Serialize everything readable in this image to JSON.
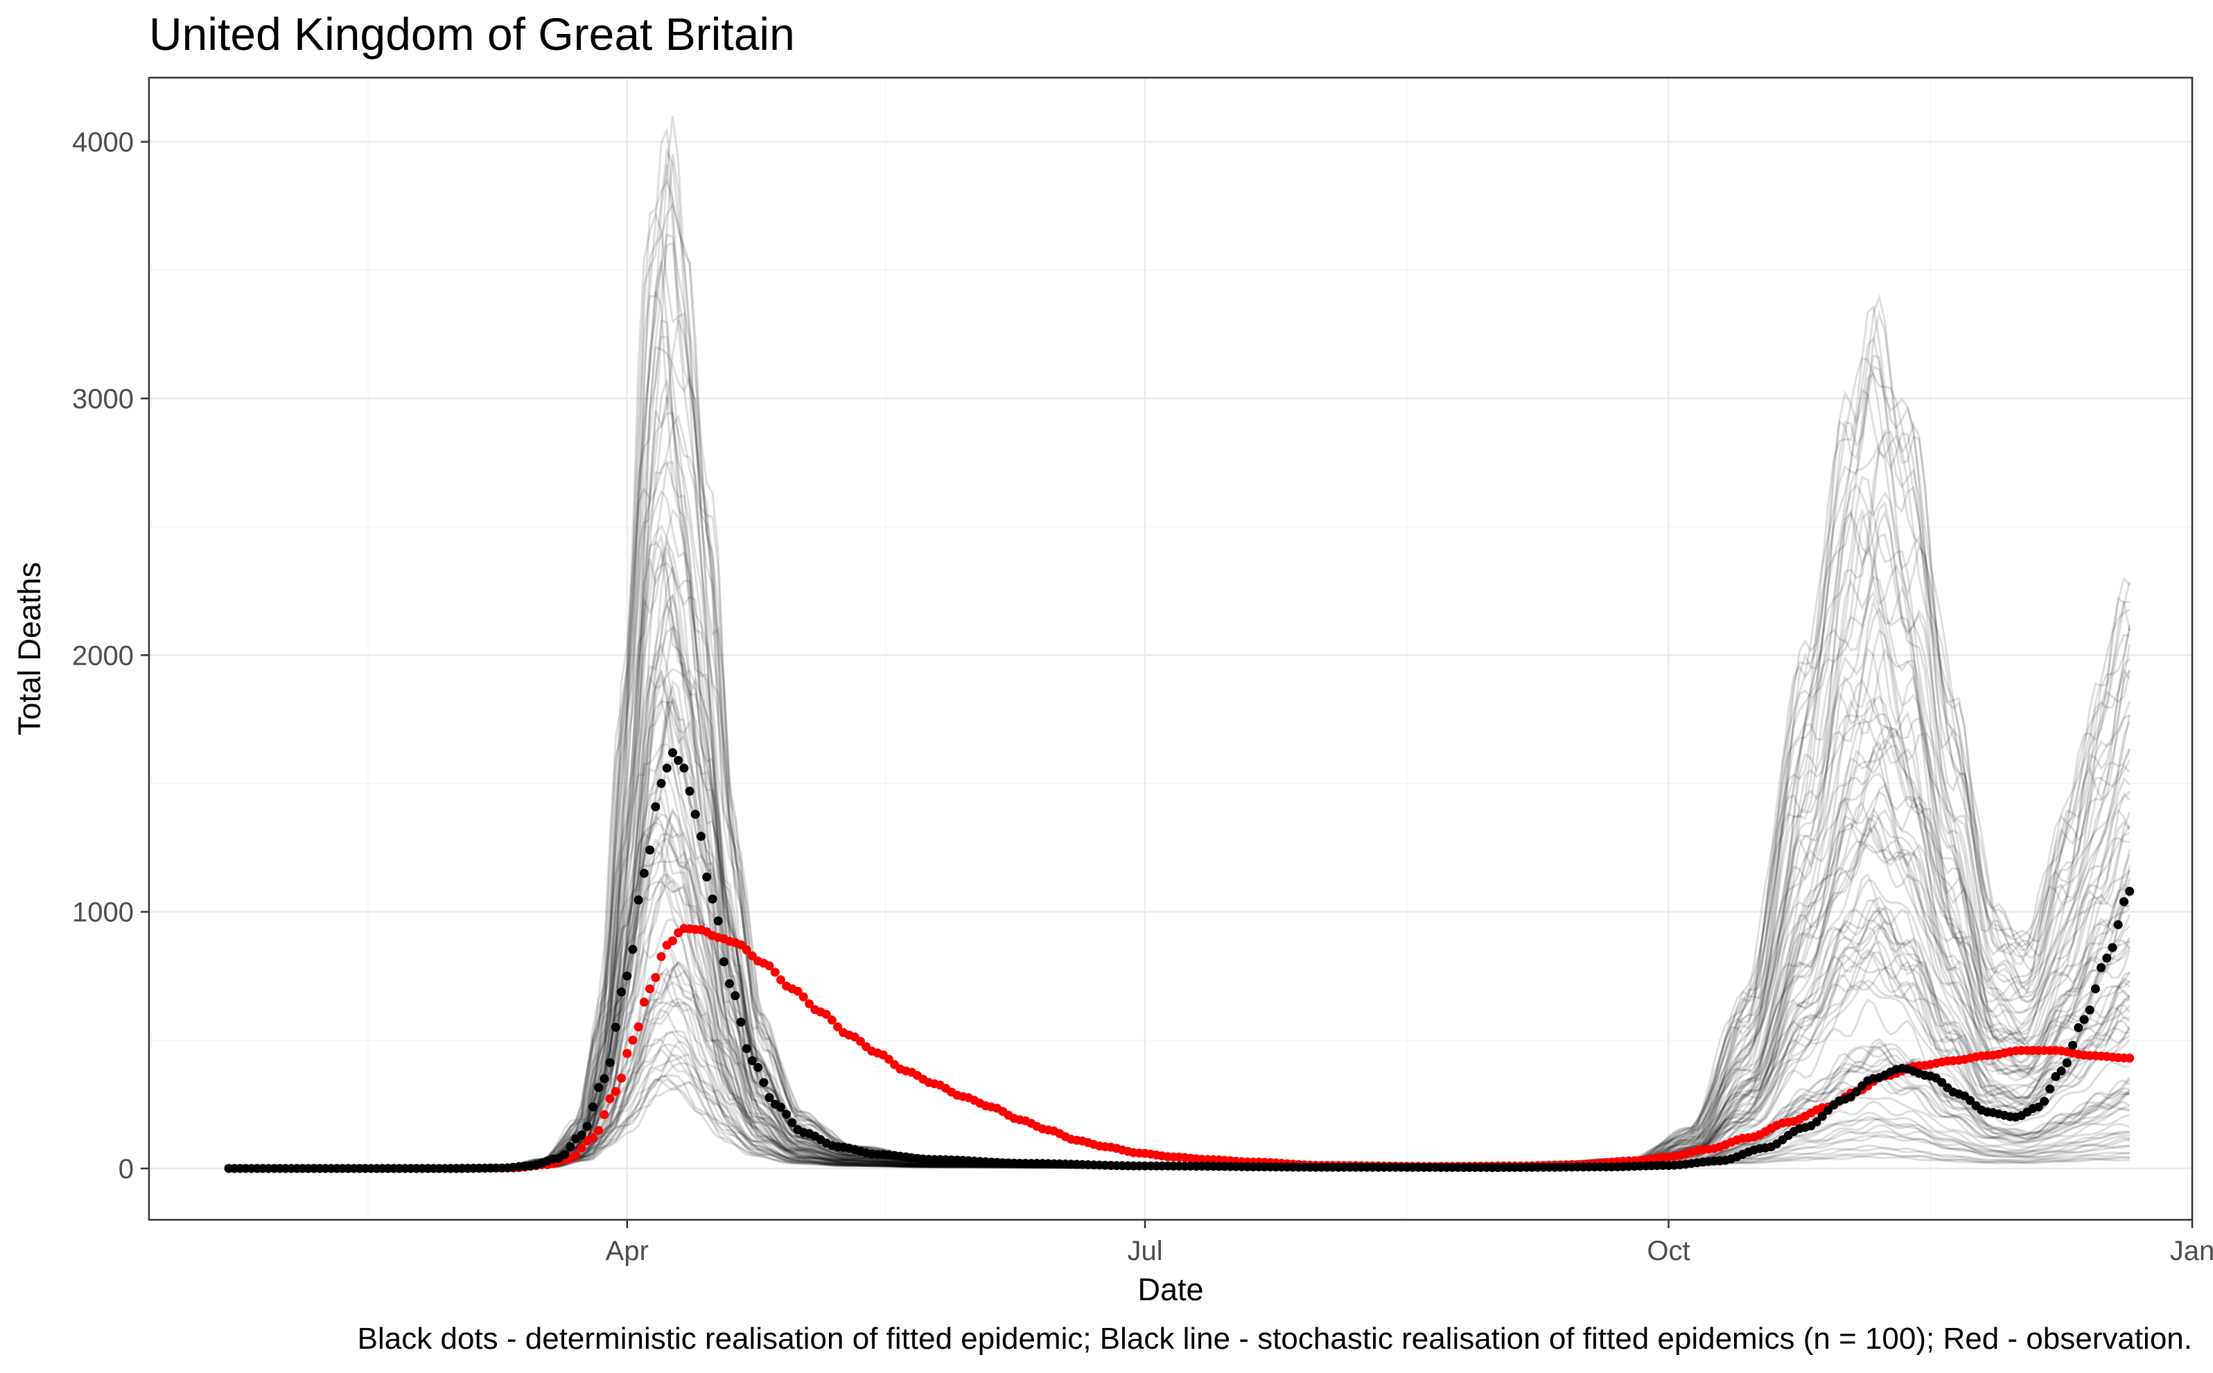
{
  "chart_data": {
    "type": "scatter",
    "title": "United Kingdom of Great Britain",
    "xlabel": "Date",
    "ylabel": "Total Deaths",
    "caption": "Black dots - deterministic realisation of fitted epidemic; Black line - stochastic realisation of fitted epidemics (n = 100); Red - observation.",
    "x_ticks": [
      {
        "date": "2020-04-01",
        "label": "Apr"
      },
      {
        "date": "2020-07-01",
        "label": "Jul"
      },
      {
        "date": "2020-10-01",
        "label": "Oct"
      },
      {
        "date": "2021-01-01",
        "label": "Jan"
      }
    ],
    "y_ticks": [
      0,
      1000,
      2000,
      3000,
      4000
    ],
    "xlim": [
      "2020-01-08",
      "2021-01-01"
    ],
    "ylim": [
      -200,
      4250
    ],
    "grid": true,
    "colors": {
      "deterministic": "#000000",
      "observation": "#ff0000",
      "stochastic": "#000000"
    },
    "series": [
      {
        "name": "deterministic",
        "style": "dots",
        "points": [
          [
            "2020-01-22",
            0
          ],
          [
            "2020-02-15",
            0
          ],
          [
            "2020-03-01",
            0
          ],
          [
            "2020-03-10",
            2
          ],
          [
            "2020-03-15",
            10
          ],
          [
            "2020-03-20",
            40
          ],
          [
            "2020-03-24",
            130
          ],
          [
            "2020-03-28",
            350
          ],
          [
            "2020-04-01",
            750
          ],
          [
            "2020-04-04",
            1150
          ],
          [
            "2020-04-07",
            1500
          ],
          [
            "2020-04-09",
            1620
          ],
          [
            "2020-04-11",
            1560
          ],
          [
            "2020-04-13",
            1380
          ],
          [
            "2020-04-16",
            1050
          ],
          [
            "2020-04-19",
            720
          ],
          [
            "2020-04-23",
            420
          ],
          [
            "2020-04-27",
            250
          ],
          [
            "2020-05-02",
            140
          ],
          [
            "2020-05-08",
            85
          ],
          [
            "2020-05-15",
            55
          ],
          [
            "2020-05-25",
            35
          ],
          [
            "2020-06-10",
            20
          ],
          [
            "2020-07-01",
            10
          ],
          [
            "2020-08-01",
            5
          ],
          [
            "2020-09-01",
            4
          ],
          [
            "2020-09-20",
            6
          ],
          [
            "2020-10-01",
            12
          ],
          [
            "2020-10-10",
            30
          ],
          [
            "2020-10-18",
            80
          ],
          [
            "2020-10-25",
            160
          ],
          [
            "2020-11-01",
            270
          ],
          [
            "2020-11-06",
            350
          ],
          [
            "2020-11-11",
            390
          ],
          [
            "2020-11-16",
            360
          ],
          [
            "2020-11-21",
            290
          ],
          [
            "2020-11-26",
            220
          ],
          [
            "2020-12-01",
            200
          ],
          [
            "2020-12-05",
            240
          ],
          [
            "2020-12-09",
            380
          ],
          [
            "2020-12-13",
            580
          ],
          [
            "2020-12-17",
            820
          ],
          [
            "2020-12-21",
            1080
          ]
        ]
      },
      {
        "name": "observation",
        "style": "dots",
        "points": [
          [
            "2020-03-01",
            0
          ],
          [
            "2020-03-12",
            2
          ],
          [
            "2020-03-18",
            15
          ],
          [
            "2020-03-22",
            40
          ],
          [
            "2020-03-26",
            120
          ],
          [
            "2020-03-30",
            300
          ],
          [
            "2020-04-02",
            500
          ],
          [
            "2020-04-05",
            700
          ],
          [
            "2020-04-08",
            870
          ],
          [
            "2020-04-11",
            935
          ],
          [
            "2020-04-14",
            930
          ],
          [
            "2020-04-17",
            900
          ],
          [
            "2020-04-20",
            880
          ],
          [
            "2020-04-25",
            800
          ],
          [
            "2020-04-30",
            700
          ],
          [
            "2020-05-05",
            610
          ],
          [
            "2020-05-10",
            520
          ],
          [
            "2020-05-15",
            450
          ],
          [
            "2020-05-20",
            380
          ],
          [
            "2020-05-25",
            330
          ],
          [
            "2020-05-30",
            280
          ],
          [
            "2020-06-04",
            240
          ],
          [
            "2020-06-09",
            190
          ],
          [
            "2020-06-14",
            150
          ],
          [
            "2020-06-19",
            110
          ],
          [
            "2020-06-24",
            85
          ],
          [
            "2020-06-30",
            60
          ],
          [
            "2020-07-06",
            45
          ],
          [
            "2020-07-12",
            35
          ],
          [
            "2020-07-20",
            25
          ],
          [
            "2020-08-01",
            12
          ],
          [
            "2020-08-20",
            8
          ],
          [
            "2020-09-05",
            10
          ],
          [
            "2020-09-15",
            15
          ],
          [
            "2020-09-25",
            30
          ],
          [
            "2020-10-01",
            45
          ],
          [
            "2020-10-08",
            75
          ],
          [
            "2020-10-15",
            120
          ],
          [
            "2020-10-22",
            180
          ],
          [
            "2020-10-29",
            240
          ],
          [
            "2020-11-03",
            300
          ],
          [
            "2020-11-08",
            360
          ],
          [
            "2020-11-14",
            400
          ],
          [
            "2020-11-20",
            420
          ],
          [
            "2020-11-26",
            440
          ],
          [
            "2020-12-02",
            460
          ],
          [
            "2020-12-08",
            460
          ],
          [
            "2020-12-14",
            440
          ],
          [
            "2020-12-21",
            430
          ]
        ]
      },
      {
        "name": "stochastic",
        "style": "lines",
        "count": 100,
        "envelope": [
          [
            "2020-01-22",
            0,
            0
          ],
          [
            "2020-03-10",
            0,
            5
          ],
          [
            "2020-03-18",
            5,
            40
          ],
          [
            "2020-03-24",
            30,
            200
          ],
          [
            "2020-03-28",
            80,
            700
          ],
          [
            "2020-04-01",
            150,
            2000
          ],
          [
            "2020-04-05",
            250,
            3600
          ],
          [
            "2020-04-08",
            320,
            4050
          ],
          [
            "2020-04-11",
            300,
            3500
          ],
          [
            "2020-04-15",
            200,
            2600
          ],
          [
            "2020-04-19",
            110,
            1400
          ],
          [
            "2020-04-24",
            50,
            600
          ],
          [
            "2020-05-01",
            20,
            220
          ],
          [
            "2020-05-10",
            10,
            90
          ],
          [
            "2020-05-25",
            5,
            40
          ],
          [
            "2020-07-01",
            2,
            15
          ],
          [
            "2020-09-01",
            2,
            10
          ],
          [
            "2020-09-25",
            5,
            40
          ],
          [
            "2020-10-05",
            10,
            160
          ],
          [
            "2020-10-15",
            20,
            700
          ],
          [
            "2020-10-25",
            30,
            2000
          ],
          [
            "2020-11-02",
            35,
            3000
          ],
          [
            "2020-11-06",
            40,
            3300
          ],
          [
            "2020-11-12",
            35,
            2900
          ],
          [
            "2020-11-20",
            25,
            1800
          ],
          [
            "2020-11-27",
            20,
            1000
          ],
          [
            "2020-12-03",
            20,
            900
          ],
          [
            "2020-12-10",
            25,
            1400
          ],
          [
            "2020-12-16",
            30,
            1900
          ],
          [
            "2020-12-21",
            30,
            2300
          ]
        ]
      }
    ]
  }
}
